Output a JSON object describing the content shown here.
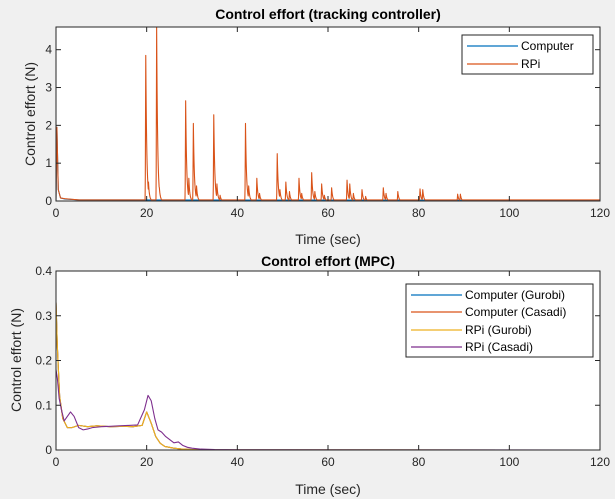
{
  "chart_data": [
    {
      "type": "line",
      "title": "Control effort (tracking controller)",
      "xlabel": "Time (sec)",
      "ylabel": "Control effort (N)",
      "xlim": [
        0,
        120
      ],
      "ylim": [
        0,
        4.6
      ],
      "xticks": [
        0,
        20,
        40,
        60,
        80,
        100,
        120
      ],
      "yticks": [
        0,
        1,
        2,
        3,
        4
      ],
      "grid": false,
      "legend_position": "top-right",
      "series": [
        {
          "name": "Computer",
          "color": "#0072bd",
          "baseline": 0.01,
          "x": [
            0,
            0.2,
            0.5,
            1,
            2,
            5,
            120
          ],
          "y": [
            0.02,
            1.95,
            0.3,
            0.08,
            0.05,
            0.03,
            0.02
          ],
          "spikes": []
        },
        {
          "name": "RPi",
          "color": "#d95319",
          "baseline": 0.02,
          "x": [
            0,
            0.2,
            0.5,
            1,
            2,
            5,
            120
          ],
          "y": [
            0.03,
            1.95,
            0.3,
            0.08,
            0.06,
            0.03,
            0.03
          ],
          "spikes": [
            [
              19.8,
              3.85
            ],
            [
              20.4,
              0.5
            ],
            [
              22.2,
              4.6
            ],
            [
              22.8,
              0.35
            ],
            [
              28.6,
              2.65
            ],
            [
              29.3,
              0.6
            ],
            [
              30.3,
              2.05
            ],
            [
              31.0,
              0.4
            ],
            [
              34.8,
              2.28
            ],
            [
              35.5,
              0.45
            ],
            [
              36.2,
              0.15
            ],
            [
              41.8,
              2.05
            ],
            [
              42.5,
              0.4
            ],
            [
              44.3,
              0.6
            ],
            [
              44.9,
              0.2
            ],
            [
              48.8,
              1.25
            ],
            [
              49.4,
              0.3
            ],
            [
              50.7,
              0.5
            ],
            [
              51.5,
              0.25
            ],
            [
              53.6,
              0.6
            ],
            [
              54.2,
              0.2
            ],
            [
              56.4,
              0.75
            ],
            [
              57.1,
              0.25
            ],
            [
              58.6,
              0.45
            ],
            [
              59.2,
              0.15
            ],
            [
              60.8,
              0.35
            ],
            [
              64.2,
              0.55
            ],
            [
              64.8,
              0.45
            ],
            [
              65.6,
              0.2
            ],
            [
              67.5,
              0.3
            ],
            [
              68.3,
              0.12
            ],
            [
              72.2,
              0.35
            ],
            [
              72.8,
              0.2
            ],
            [
              75.4,
              0.25
            ],
            [
              80.3,
              0.32
            ],
            [
              80.9,
              0.3
            ],
            [
              88.6,
              0.18
            ],
            [
              89.2,
              0.18
            ]
          ]
        }
      ]
    },
    {
      "type": "line",
      "title": "Control effort (MPC)",
      "xlabel": "Time (sec)",
      "ylabel": "Control effort (N)",
      "xlim": [
        0,
        120
      ],
      "ylim": [
        0,
        0.4
      ],
      "xticks": [
        0,
        20,
        40,
        60,
        80,
        100,
        120
      ],
      "yticks": [
        0,
        0.1,
        0.2,
        0.3,
        0.4
      ],
      "ytick_labels": [
        "0",
        "0.1",
        "0.2",
        "0.3",
        "0.4"
      ],
      "grid": false,
      "legend_position": "top-right",
      "series": [
        {
          "name": "Computer (Gurobi)",
          "color": "#0072bd",
          "x": [
            0,
            0.3,
            0.8,
            1.5,
            2.5,
            3.5,
            5,
            7,
            9,
            12,
            15,
            17,
            19,
            20,
            21,
            22,
            23,
            24,
            26,
            28,
            30,
            32,
            35,
            40,
            120
          ],
          "y": [
            0.33,
            0.23,
            0.12,
            0.07,
            0.05,
            0.05,
            0.055,
            0.052,
            0.054,
            0.052,
            0.053,
            0.052,
            0.055,
            0.085,
            0.06,
            0.03,
            0.015,
            0.008,
            0.004,
            0.002,
            0.001,
            0.0005,
            0.0002,
            0.0001,
            0
          ]
        },
        {
          "name": "Computer (Casadi)",
          "color": "#d95319",
          "x": [
            0,
            0.3,
            0.8,
            1.5,
            2.5,
            3.5,
            5,
            7,
            9,
            12,
            15,
            17,
            19,
            20,
            21,
            22,
            23,
            24,
            26,
            28,
            30,
            32,
            35,
            40,
            120
          ],
          "y": [
            0.33,
            0.23,
            0.12,
            0.07,
            0.05,
            0.05,
            0.055,
            0.052,
            0.054,
            0.052,
            0.053,
            0.052,
            0.055,
            0.085,
            0.06,
            0.03,
            0.015,
            0.008,
            0.004,
            0.002,
            0.001,
            0.0005,
            0.0002,
            0.0001,
            0
          ]
        },
        {
          "name": "RPi (Gurobi)",
          "color": "#edb120",
          "x": [
            0,
            0.3,
            0.8,
            1.5,
            2.5,
            3.5,
            5,
            7,
            9,
            12,
            15,
            17,
            19,
            20,
            21,
            22,
            23,
            24,
            26,
            28,
            30,
            32,
            35,
            40,
            120
          ],
          "y": [
            0.33,
            0.23,
            0.12,
            0.07,
            0.05,
            0.05,
            0.055,
            0.052,
            0.054,
            0.052,
            0.053,
            0.052,
            0.055,
            0.085,
            0.06,
            0.03,
            0.015,
            0.008,
            0.004,
            0.002,
            0.001,
            0.0005,
            0.0002,
            0.0001,
            0
          ]
        },
        {
          "name": "RPi (Casadi)",
          "color": "#7e2f8e",
          "x": [
            0,
            0.3,
            0.7,
            1.2,
            1.8,
            2.5,
            3.2,
            4,
            5,
            6,
            7,
            8,
            10,
            12,
            14,
            16,
            18,
            19.5,
            20.3,
            21,
            21.8,
            22.5,
            23.3,
            24.2,
            25,
            26,
            27,
            28,
            29,
            30,
            32,
            35,
            40,
            120
          ],
          "y": [
            0.18,
            0.16,
            0.115,
            0.09,
            0.065,
            0.075,
            0.085,
            0.075,
            0.05,
            0.045,
            0.047,
            0.05,
            0.052,
            0.053,
            0.054,
            0.055,
            0.056,
            0.09,
            0.122,
            0.11,
            0.07,
            0.045,
            0.04,
            0.03,
            0.024,
            0.016,
            0.018,
            0.01,
            0.006,
            0.004,
            0.002,
            0.001,
            0.0005,
            0
          ]
        }
      ]
    }
  ]
}
